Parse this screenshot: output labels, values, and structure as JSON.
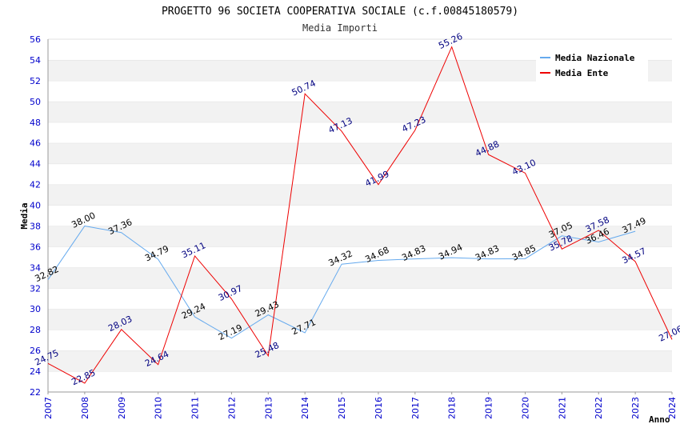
{
  "chart_data": {
    "type": "line",
    "title": "PROGETTO 96 SOCIETA COOPERATIVA SOCIALE (c.f.00845180579)",
    "subtitle": "Media Importi",
    "xlabel": "Anno",
    "ylabel": "Media",
    "ylim": [
      22,
      56
    ],
    "ytick_step": 2,
    "x": [
      "2007",
      "2008",
      "2009",
      "2010",
      "2011",
      "2012",
      "2013",
      "2014",
      "2015",
      "2016",
      "2017",
      "2018",
      "2019",
      "2020",
      "2021",
      "2022",
      "2023",
      "2024"
    ],
    "series": [
      {
        "name": "Media Nazionale",
        "color": "#66aaee",
        "label_color": "#000000",
        "values": [
          32.82,
          38.0,
          37.36,
          34.79,
          29.24,
          27.19,
          29.43,
          27.71,
          34.32,
          34.68,
          34.83,
          34.94,
          34.83,
          34.85,
          37.05,
          36.46,
          37.49,
          null
        ],
        "labels": [
          "32.82",
          "38.00",
          "37.36",
          "34.79",
          "29.24",
          "27.19",
          "29.43",
          "27.71",
          "34.32",
          "34.68",
          "34.83",
          "34.94",
          "34.83",
          "34.85",
          "37.05",
          "36.46",
          "37.49",
          ""
        ]
      },
      {
        "name": "Media Ente",
        "color": "#ee0000",
        "label_color": "#000080",
        "values": [
          24.75,
          22.85,
          28.03,
          24.64,
          35.11,
          30.97,
          25.48,
          50.74,
          47.13,
          41.99,
          47.23,
          55.26,
          44.88,
          43.1,
          35.78,
          37.58,
          34.57,
          27.06
        ],
        "labels": [
          "24.75",
          "22.85",
          "28.03",
          "24.64",
          "35.11",
          "30.97",
          "25.48",
          "50.74",
          "47.13",
          "41.99",
          "47.23",
          "55.26",
          "44.88",
          "43.10",
          "35.78",
          "37.58",
          "34.57",
          "27.06"
        ]
      }
    ],
    "legend": "top-right",
    "grid": true
  }
}
